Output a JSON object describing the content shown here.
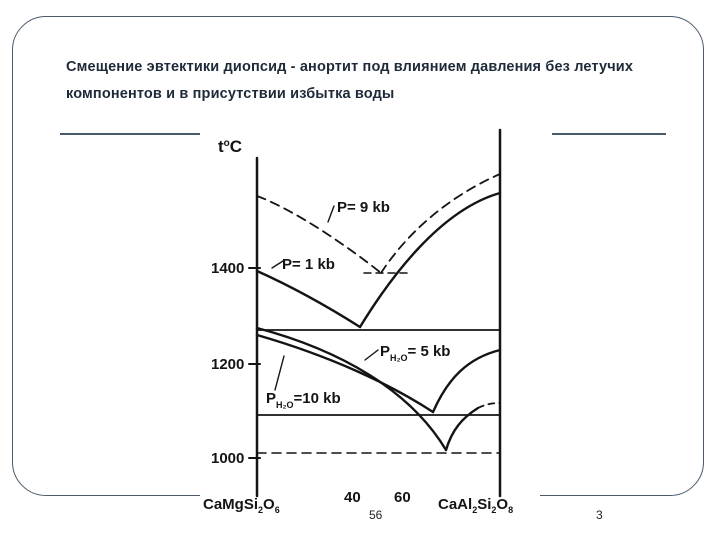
{
  "slide": {
    "title": "Смещение эвтектики диопсид - анортит под влиянием давления без летучих компонентов и в присутствии избытка воды",
    "page_left": "56",
    "page_right": "3"
  },
  "diagram": {
    "y_axis": {
      "label_base": "t",
      "label_sup": "o",
      "label_end": "C",
      "ticks": [
        "1400",
        "1200",
        "1000"
      ]
    },
    "x_axis": {
      "left_end": {
        "base1": "CaMgSi",
        "sub1": "2",
        "base2": "O",
        "sub2": "6"
      },
      "ticks": [
        "40",
        "60"
      ],
      "right_end": {
        "base1": "CaAl",
        "sub1": "2",
        "base2": "Si",
        "sub2": "2",
        "base3": "O",
        "sub3": "8"
      }
    },
    "curves": [
      {
        "text": "P= 9 kb"
      },
      {
        "text": "P= 1 kb"
      },
      {
        "base": "P",
        "sub": "H₂O",
        "rest": "= 5 kb"
      },
      {
        "base": "P",
        "sub": "H₂O",
        "rest": "=10 kb"
      }
    ],
    "stroke_color": "#141414"
  }
}
